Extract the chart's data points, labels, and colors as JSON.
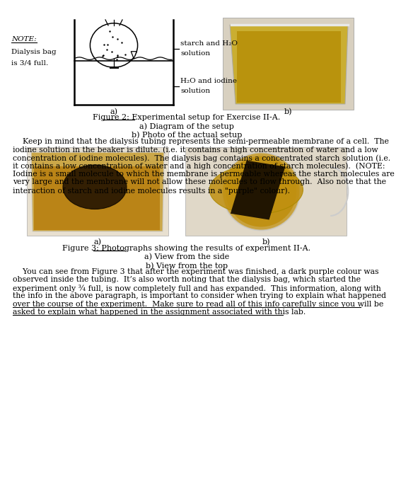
{
  "bg_color": "#ffffff",
  "fig_width": 5.08,
  "fig_height": 6.79,
  "note_line1": "NOTE:",
  "note_line2": "Dialysis bag",
  "note_line3": "is 3/4 full.",
  "starch_label1": "starch and H₂O",
  "starch_label2": "solution",
  "iodine_label1": "H₂O and iodine",
  "iodine_label2": "solution",
  "label_a": "a)",
  "label_b": "b)",
  "fig2_cap1": "Figure 2: Experimental setup for Exercise II-A.",
  "fig2_cap2": "a) Diagram of the setup",
  "fig2_cap3": "b) Photo of the actual setup",
  "fig3_cap1": "Figure 3: Photographs showing the results of experiment II-A.",
  "fig3_cap2": "a) View from the side",
  "fig3_cap3": "b) View from the top",
  "para1_lines": [
    "    Keep in mind that the dialysis tubing represents the semi-permeable membrane of a cell.  The",
    "iodine solution in the beaker is dilute. (i.e. it contains a high concentration of water and a low",
    "concentration of iodine molecules).  The dialysis bag contains a concentrated starch solution (i.e.",
    "it contains a low concentration of water and a high concentration of starch molecules).  (NOTE:",
    "Iodine is a small molecule to which the membrane is permeable whereas the starch molecules are",
    "very large and the membrane will not allow these molecules to flow through.  Also note that the",
    "interaction of starch and iodine molecules results in a \"purple\" colour)."
  ],
  "para2_lines": [
    "    You can see from Figure 3 that after the experiment was finished, a dark purple colour was",
    "observed inside the tubing.  It’s also worth noting that the dialysis bag, which started the",
    "experiment only ¾ full, is now completely full and has expanded.  This information, along with",
    "the info in the above paragraph, is important to consider when trying to explain what happened",
    "over the course of the experiment.  Make sure to read all of this info carefully since you will be",
    "asked to explain what happened in the assignment associated with this lab."
  ]
}
